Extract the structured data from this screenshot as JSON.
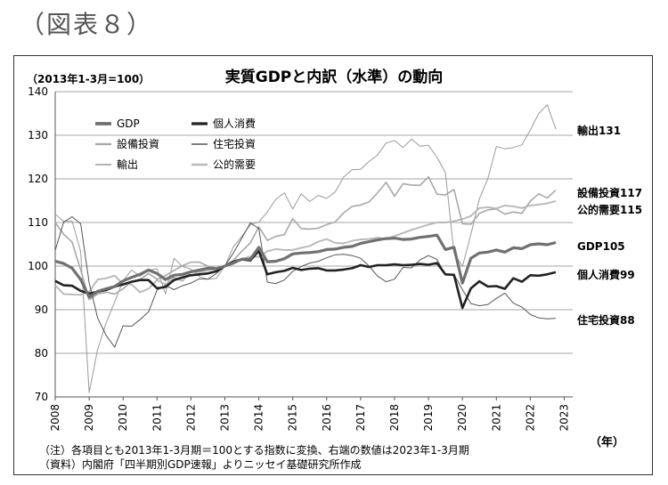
{
  "figure_label": "（図表８）",
  "chart_data": {
    "type": "line",
    "title": "実質GDPと内訳（水準）の動向",
    "unit_label": "（2013年1-3月=100）",
    "x_unit_label": "（年）",
    "ylim": [
      70,
      140
    ],
    "yticks": [
      "70",
      "80",
      "90",
      "100",
      "110",
      "120",
      "130",
      "140"
    ],
    "xlim": [
      2008.0,
      2023.25
    ],
    "xticks": [
      "2008",
      "2009",
      "2010",
      "2011",
      "2012",
      "2013",
      "2014",
      "2015",
      "2016",
      "2017",
      "2018",
      "2019",
      "2020",
      "2021",
      "2022",
      "2023"
    ],
    "grid": "horizontal",
    "legend_position": "top-left",
    "colors": {
      "gdp": "#707070",
      "consumption": "#222222",
      "investment": "#a8a8a8",
      "housing": "#555555",
      "exports": "#9a9a9a",
      "public": "#b8b8b8"
    },
    "series": [
      {
        "key": "gdp",
        "name": "GDP",
        "end_label": "GDP105",
        "values": [
          101.1,
          100.6,
          99.5,
          96.9,
          92.9,
          94.2,
          94.8,
          95.3,
          96.6,
          97.4,
          98.1,
          99.1,
          98.3,
          96.9,
          97.9,
          98.1,
          98.7,
          99.1,
          99.5,
          99.4,
          100.0,
          100.7,
          101.6,
          101.6,
          104.3,
          101.0,
          101.1,
          101.7,
          102.8,
          103.0,
          103.1,
          103.3,
          103.8,
          103.9,
          104.3,
          104.5,
          105.2,
          105.6,
          106.0,
          106.3,
          106.4,
          106.1,
          106.2,
          106.6,
          106.8,
          107.1,
          103.8,
          104.3,
          96.1,
          101.8,
          103.0,
          103.2,
          103.7,
          103.2,
          104.2,
          104.0,
          104.9,
          105.1,
          104.9,
          105.4
        ],
        "x_start": 2008.0
      },
      {
        "key": "consumption",
        "name": "個人消費",
        "end_label": "個人消費99",
        "values": [
          96.6,
          95.6,
          95.5,
          94.3,
          93.7,
          94.1,
          94.5,
          95.3,
          95.8,
          96.4,
          96.8,
          96.8,
          94.9,
          95.2,
          96.8,
          97.4,
          97.9,
          98.1,
          98.3,
          98.8,
          100.0,
          101.0,
          101.5,
          101.3,
          103.5,
          98.1,
          98.6,
          98.9,
          99.6,
          99.1,
          99.4,
          99.5,
          99.0,
          99.0,
          99.2,
          99.5,
          100.2,
          99.8,
          100.2,
          100.2,
          100.4,
          100.2,
          100.3,
          100.5,
          100.3,
          100.7,
          98.1,
          98.0,
          90.4,
          94.9,
          96.5,
          95.3,
          95.4,
          94.8,
          97.2,
          96.4,
          97.9,
          97.8,
          98.1,
          98.6
        ],
        "x_start": 2008.0
      },
      {
        "key": "investment",
        "name": "設備投資",
        "end_label": "設備投資117",
        "values": [
          110.0,
          107.3,
          105.5,
          99.1,
          92.3,
          93.6,
          94.0,
          93.6,
          94.8,
          96.4,
          96.9,
          98.3,
          97.0,
          97.8,
          99.0,
          100.1,
          100.9,
          100.9,
          100.0,
          99.5,
          100.0,
          101.3,
          103.4,
          105.3,
          109.0,
          105.9,
          106.8,
          107.2,
          110.9,
          108.6,
          108.5,
          108.7,
          109.5,
          110.1,
          112.2,
          113.7,
          114.0,
          114.7,
          116.8,
          119.2,
          116.0,
          118.9,
          118.6,
          118.5,
          120.5,
          116.5,
          116.3,
          117.6,
          109.7,
          109.6,
          112.1,
          112.9,
          113.1,
          111.9,
          112.4,
          112.1,
          114.9,
          116.6,
          115.6,
          117.4
        ],
        "x_start": 2008.0
      },
      {
        "key": "housing",
        "name": "住宅投資",
        "end_label": "住宅投資88",
        "values": [
          103.6,
          110.1,
          111.3,
          109.7,
          96.2,
          88.1,
          84.1,
          81.4,
          86.3,
          86.2,
          87.7,
          89.5,
          94.5,
          95.6,
          94.6,
          95.5,
          96.1,
          97.1,
          97.0,
          98.3,
          100.0,
          103.0,
          106.4,
          109.9,
          108.6,
          96.3,
          96.0,
          96.8,
          98.8,
          99.9,
          100.7,
          101.1,
          101.9,
          102.6,
          102.7,
          102.4,
          101.8,
          100.0,
          97.7,
          96.4,
          97.0,
          99.7,
          99.6,
          101.4,
          102.4,
          101.5,
          98.0,
          98.1,
          94.6,
          91.4,
          90.9,
          91.2,
          92.6,
          93.8,
          91.5,
          90.6,
          88.9,
          88.1,
          87.9,
          88.0
        ],
        "x_start": 2008.0
      },
      {
        "key": "exports",
        "name": "輸出",
        "end_label": "輸出131",
        "values": [
          111.9,
          110.3,
          110.3,
          103.3,
          71.0,
          80.9,
          86.9,
          91.8,
          96.6,
          99.1,
          97.7,
          99.0,
          99.4,
          93.6,
          101.8,
          99.9,
          99.3,
          97.6,
          97.0,
          97.2,
          100.0,
          104.4,
          106.8,
          109.5,
          110.1,
          112.4,
          115.3,
          116.8,
          113.1,
          116.6,
          114.8,
          116.2,
          115.5,
          117.0,
          120.4,
          122.1,
          122.2,
          124.0,
          125.5,
          128.2,
          128.8,
          127.2,
          129.1,
          127.5,
          127.7,
          125.0,
          121.4,
          103.0,
          99.9,
          107.3,
          115.4,
          120.1,
          127.4,
          126.9,
          127.2,
          127.8,
          131.2,
          135.0,
          137.0,
          131.4
        ],
        "x_start": 2008.0
      },
      {
        "key": "public",
        "name": "公的需要",
        "end_label": "公的需要115",
        "values": [
          95.6,
          93.6,
          93.5,
          93.4,
          94.1,
          96.9,
          97.2,
          97.8,
          95.9,
          95.8,
          94.0,
          94.8,
          96.8,
          95.8,
          97.4,
          96.6,
          98.7,
          98.6,
          99.0,
          99.3,
          100.0,
          101.3,
          101.6,
          102.2,
          102.1,
          103.4,
          103.9,
          103.7,
          103.7,
          104.2,
          104.6,
          105.6,
          106.2,
          105.3,
          105.2,
          105.8,
          106.1,
          106.2,
          106.5,
          106.2,
          106.9,
          107.6,
          108.3,
          108.9,
          109.5,
          110.0,
          110.0,
          110.3,
          110.8,
          111.5,
          113.3,
          113.5,
          113.2,
          113.9,
          113.7,
          113.3,
          113.9,
          114.1,
          114.4,
          114.9
        ],
        "x_start": 2008.0
      }
    ]
  },
  "notes": {
    "note1": "（注）各項目とも2013年1-3月期＝100とする指数に変換、右端の数値は2023年1-3月期",
    "note2": "（資料）内閣府「四半期別GDP速報」よりニッセイ基礎研究所作成"
  }
}
